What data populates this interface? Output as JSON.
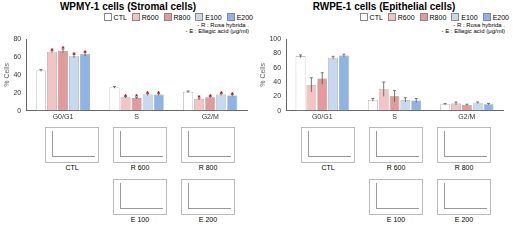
{
  "chart_data": [
    {
      "type": "bar",
      "title": "WPMY-1 cells (Stromal cells)",
      "y_label": "% Cells",
      "categories": [
        "G0/G1",
        "S",
        "G2/M"
      ],
      "series": [
        {
          "name": "CTL",
          "color": "#ffffff",
          "values": [
            45,
            26,
            21
          ],
          "errors": [
            1,
            1,
            1
          ]
        },
        {
          "name": "R600",
          "color": "#f2c4c4",
          "values": [
            66,
            15,
            13
          ],
          "errors": [
            1,
            1,
            1
          ],
          "marks": [
            "*",
            "*",
            "*"
          ]
        },
        {
          "name": "R800",
          "color": "#e39a9a",
          "values": [
            67,
            14,
            15
          ],
          "errors": [
            2,
            1,
            1
          ],
          "marks": [
            "*",
            "*",
            "*"
          ]
        },
        {
          "name": "E100",
          "color": "#c6d9f0",
          "values": [
            61,
            18,
            18
          ],
          "errors": [
            2,
            1,
            1
          ],
          "marks": [
            "*",
            "*",
            "*"
          ]
        },
        {
          "name": "E200",
          "color": "#8eb4e3",
          "values": [
            63,
            18,
            17
          ],
          "errors": [
            2,
            1,
            1
          ],
          "marks": [
            "*",
            "*",
            "*"
          ]
        }
      ],
      "ylim": [
        0,
        80
      ],
      "yticks": [
        0,
        20,
        40,
        60,
        80
      ],
      "grid": false,
      "legend": "top-right",
      "annotations": [
        "- R : Rosa hybrida .",
        "- E : Ellagic acid (μg/ml)"
      ],
      "thumbnails": [
        "CTL",
        "R 600",
        "R 800",
        "E 100",
        "E 200"
      ]
    },
    {
      "type": "bar",
      "title": "RWPE-1 cells (Epithelial cells)",
      "y_label": "% Cells",
      "categories": [
        "G0/G1",
        "S",
        "G2/M"
      ],
      "series": [
        {
          "name": "CTL",
          "color": "#ffffff",
          "values": [
            76,
            15,
            9
          ],
          "errors": [
            2,
            2,
            1
          ]
        },
        {
          "name": "R600",
          "color": "#f2c4c4",
          "values": [
            36,
            30,
            10
          ],
          "errors": [
            10,
            10,
            2
          ]
        },
        {
          "name": "R800",
          "color": "#e39a9a",
          "values": [
            45,
            20,
            8
          ],
          "errors": [
            8,
            8,
            1
          ]
        },
        {
          "name": "E100",
          "color": "#c6d9f0",
          "values": [
            74,
            15,
            11
          ],
          "errors": [
            2,
            3,
            1
          ]
        },
        {
          "name": "E200",
          "color": "#8eb4e3",
          "values": [
            77,
            14,
            9
          ],
          "errors": [
            2,
            3,
            1
          ]
        }
      ],
      "ylim": [
        0,
        100
      ],
      "yticks": [
        0,
        20,
        40,
        60,
        80,
        100
      ],
      "grid": false,
      "legend": "top-right",
      "annotations": [
        "- R : Rosa hybrida .",
        "- E : Ellagic acid (μg/ml)"
      ],
      "thumbnails": [
        "CTL",
        "R 600",
        "R 800",
        "E 100",
        "E 200"
      ]
    }
  ]
}
